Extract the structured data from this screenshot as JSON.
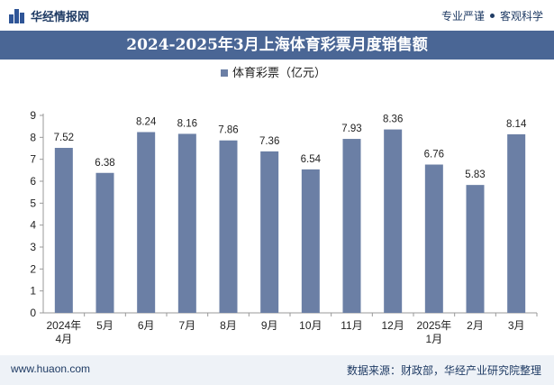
{
  "header": {
    "brand": "华经情报网",
    "tagline_left": "专业严谨",
    "tagline_right": "客观科学"
  },
  "title": "2024-2025年3月上海体育彩票月度销售额",
  "footer": {
    "website": "www.huaon.com",
    "source": "数据来源：财政部，华经产业研究院整理"
  },
  "colors": {
    "bar": "#6b7fa5",
    "title_bg": "#4a6695",
    "footer_bg": "#eef2f7",
    "brand": "#1f3b64"
  },
  "chart_data": {
    "type": "bar",
    "categories": [
      "2024年\n4月",
      "5月",
      "6月",
      "7月",
      "8月",
      "9月",
      "10月",
      "11月",
      "12月",
      "2025年\n1月",
      "2月",
      "3月"
    ],
    "series": [
      {
        "name": "体育彩票（亿元）",
        "values": [
          7.52,
          6.38,
          8.24,
          8.16,
          7.86,
          7.36,
          6.54,
          7.93,
          8.36,
          6.76,
          5.83,
          8.14
        ]
      }
    ],
    "ylim": [
      0,
      9
    ],
    "yticks": [
      0,
      1,
      2,
      3,
      4,
      5,
      6,
      7,
      8,
      9
    ],
    "legend_position": "top-center",
    "grid": false
  }
}
